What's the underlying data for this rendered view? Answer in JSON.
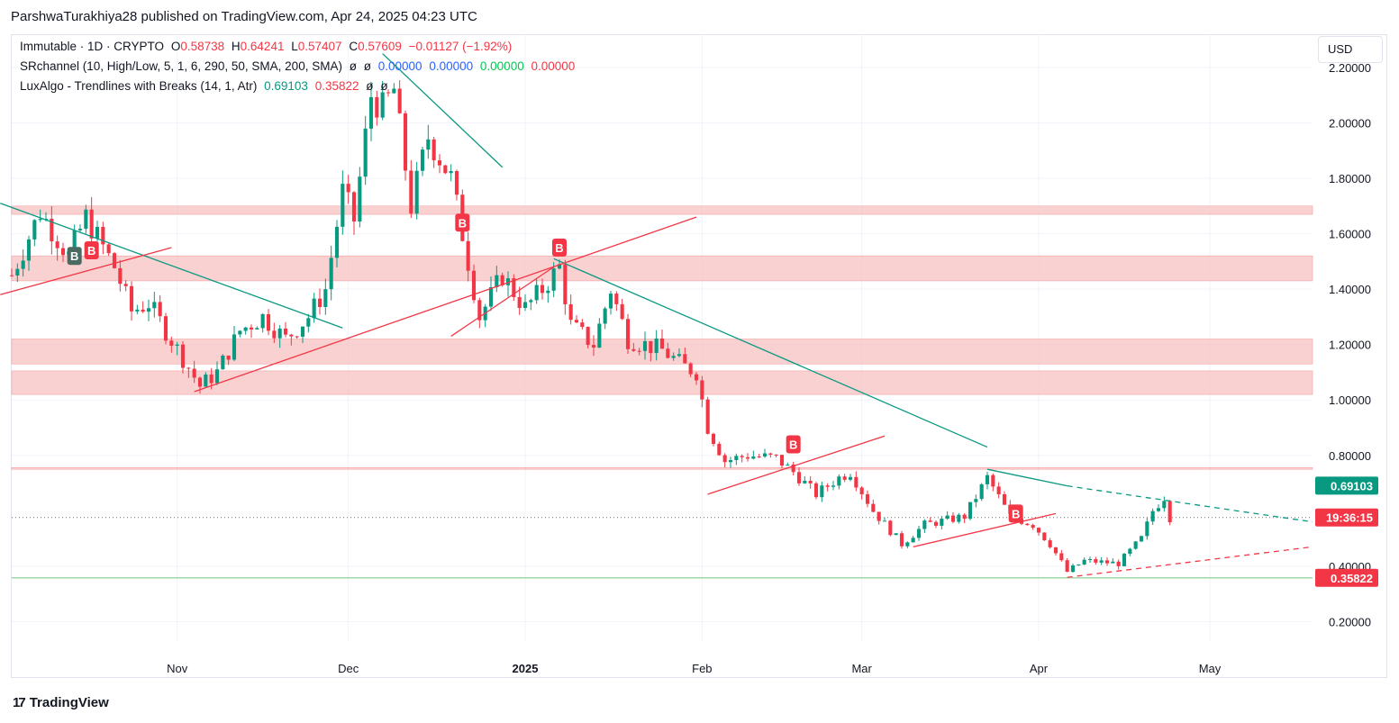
{
  "header": {
    "text": "ParshwaTurakhiya28 published on TradingView.com, Apr 24, 2025 04:23 UTC"
  },
  "legend": {
    "symbol_line": {
      "name": "Immutable · 1D · CRYPTO",
      "o_label": "O",
      "o": "0.58738",
      "h_label": "H",
      "h": "0.64241",
      "l_label": "L",
      "l": "0.57407",
      "c_label": "C",
      "c": "0.57609",
      "change": "−0.01127 (−1.92%)"
    },
    "sr_line": {
      "name": "SRchannel (10, High/Low, 5, 1, 6, 290, 50, SMA, 200, SMA)",
      "sym1": "ø",
      "sym2": "ø",
      "v1": "0.00000",
      "v2": "0.00000",
      "v3": "0.00000",
      "v4": "0.00000"
    },
    "lux_line": {
      "name": "LuxAlgo - Trendlines with Breaks (14, 1, Atr)",
      "v1": "0.69103",
      "v2": "0.35822",
      "sym1": "ø",
      "sym2": "ø"
    }
  },
  "currency_button": "USD",
  "footer": {
    "logo": "17",
    "brand": "TradingView"
  },
  "colors": {
    "up": "#089981",
    "down": "#f23645",
    "zone": "#f8c1c1",
    "green_line": "#089981",
    "red_line": "#f23645",
    "support_line": "#a5d6a7"
  },
  "price_tags": [
    {
      "label": "0.69103",
      "value": 0.69103,
      "color": "#089981"
    },
    {
      "label": "19:36:15",
      "value": 0.576,
      "color": "#f23645"
    },
    {
      "label": "0.35822",
      "value": 0.35822,
      "color": "#f23645"
    }
  ],
  "chart_data": {
    "type": "candlestick",
    "ylim": [
      0.13,
      2.32
    ],
    "y_ticks": [
      "2.20000",
      "2.00000",
      "1.80000",
      "1.60000",
      "1.40000",
      "1.20000",
      "1.00000",
      "0.80000",
      "0.40000",
      "0.20000"
    ],
    "x_labels": [
      {
        "label": "Nov",
        "date": "2024-11-01",
        "bold": false
      },
      {
        "label": "Dec",
        "date": "2024-12-01",
        "bold": false
      },
      {
        "label": "2025",
        "date": "2025-01-01",
        "bold": true
      },
      {
        "label": "Feb",
        "date": "2025-02-01",
        "bold": false
      },
      {
        "label": "Mar",
        "date": "2025-03-01",
        "bold": false
      },
      {
        "label": "Apr",
        "date": "2025-04-01",
        "bold": false
      },
      {
        "label": "May",
        "date": "2025-05-01",
        "bold": false
      }
    ],
    "x_range": [
      "2024-10-03",
      "2025-05-19"
    ],
    "resistance_zones": [
      [
        1.67,
        1.7
      ],
      [
        1.43,
        1.52
      ],
      [
        1.13,
        1.22
      ],
      [
        1.02,
        1.105
      ],
      [
        0.75,
        0.756
      ]
    ],
    "support_line": 0.35822,
    "current_price": 0.57609,
    "candle_keypoints": [
      {
        "date": "2024-10-03",
        "close": 1.45
      },
      {
        "date": "2024-10-08",
        "close": 1.68
      },
      {
        "date": "2024-10-13",
        "close": 1.52
      },
      {
        "date": "2024-10-16",
        "close": 1.66
      },
      {
        "date": "2024-10-21",
        "close": 1.48
      },
      {
        "date": "2024-10-24",
        "close": 1.32
      },
      {
        "date": "2024-10-27",
        "close": 1.35
      },
      {
        "date": "2024-10-30",
        "close": 1.25
      },
      {
        "date": "2024-11-02",
        "close": 1.15
      },
      {
        "date": "2024-11-05",
        "close": 1.05
      },
      {
        "date": "2024-11-08",
        "close": 1.1
      },
      {
        "date": "2024-11-12",
        "close": 1.25
      },
      {
        "date": "2024-11-16",
        "close": 1.3
      },
      {
        "date": "2024-11-20",
        "close": 1.22
      },
      {
        "date": "2024-11-24",
        "close": 1.3
      },
      {
        "date": "2024-11-27",
        "close": 1.4
      },
      {
        "date": "2024-11-30",
        "close": 1.75
      },
      {
        "date": "2024-12-02",
        "close": 1.65
      },
      {
        "date": "2024-12-05",
        "close": 2.1
      },
      {
        "date": "2024-12-07",
        "close": 2.05
      },
      {
        "date": "2024-12-09",
        "close": 2.12
      },
      {
        "date": "2024-12-12",
        "close": 1.7
      },
      {
        "date": "2024-12-15",
        "close": 1.95
      },
      {
        "date": "2024-12-19",
        "close": 1.8
      },
      {
        "date": "2024-12-21",
        "close": 1.6
      },
      {
        "date": "2024-12-24",
        "close": 1.3
      },
      {
        "date": "2024-12-28",
        "close": 1.45
      },
      {
        "date": "2025-01-01",
        "close": 1.33
      },
      {
        "date": "2025-01-04",
        "close": 1.4
      },
      {
        "date": "2025-01-07",
        "close": 1.48
      },
      {
        "date": "2025-01-09",
        "close": 1.27
      },
      {
        "date": "2025-01-13",
        "close": 1.2
      },
      {
        "date": "2025-01-16",
        "close": 1.4
      },
      {
        "date": "2025-01-19",
        "close": 1.22
      },
      {
        "date": "2025-01-25",
        "close": 1.18
      },
      {
        "date": "2025-01-29",
        "close": 1.12
      },
      {
        "date": "2025-01-31",
        "close": 1.1
      },
      {
        "date": "2025-02-02",
        "close": 0.9
      },
      {
        "date": "2025-02-05",
        "close": 0.78
      },
      {
        "date": "2025-02-09",
        "close": 0.8
      },
      {
        "date": "2025-02-14",
        "close": 0.79
      },
      {
        "date": "2025-02-17",
        "close": 0.74
      },
      {
        "date": "2025-02-21",
        "close": 0.66
      },
      {
        "date": "2025-02-25",
        "close": 0.72
      },
      {
        "date": "2025-02-27",
        "close": 0.74
      },
      {
        "date": "2025-03-03",
        "close": 0.6
      },
      {
        "date": "2025-03-08",
        "close": 0.48
      },
      {
        "date": "2025-03-12",
        "close": 0.55
      },
      {
        "date": "2025-03-19",
        "close": 0.58
      },
      {
        "date": "2025-03-23",
        "close": 0.72
      },
      {
        "date": "2025-03-27",
        "close": 0.58
      },
      {
        "date": "2025-03-31",
        "close": 0.55
      },
      {
        "date": "2025-04-03",
        "close": 0.48
      },
      {
        "date": "2025-04-06",
        "close": 0.38
      },
      {
        "date": "2025-04-09",
        "close": 0.42
      },
      {
        "date": "2025-04-15",
        "close": 0.41
      },
      {
        "date": "2025-04-19",
        "close": 0.5
      },
      {
        "date": "2025-04-21",
        "close": 0.6
      },
      {
        "date": "2025-04-23",
        "close": 0.65
      },
      {
        "date": "2025-04-24",
        "close": 0.57609
      }
    ],
    "trendlines": [
      {
        "color": "#089981",
        "dashed": false,
        "from": {
          "date": "2024-10-01",
          "value": 1.71
        },
        "to": {
          "date": "2024-11-30",
          "value": 1.26
        }
      },
      {
        "color": "#089981",
        "dashed": false,
        "from": {
          "date": "2024-12-07",
          "value": 2.25
        },
        "to": {
          "date": "2024-12-28",
          "value": 1.84
        }
      },
      {
        "color": "#089981",
        "dashed": false,
        "from": {
          "date": "2025-01-06",
          "value": 1.51
        },
        "to": {
          "date": "2025-03-23",
          "value": 0.83
        }
      },
      {
        "color": "#089981",
        "dashed": false,
        "from": {
          "date": "2025-03-23",
          "value": 0.75
        },
        "to": {
          "date": "2025-04-06",
          "value": 0.69
        }
      },
      {
        "color": "#089981",
        "dashed": true,
        "from": {
          "date": "2025-04-06",
          "value": 0.69
        },
        "to": {
          "date": "2025-05-19",
          "value": 0.56
        }
      },
      {
        "color": "#f23645",
        "dashed": false,
        "from": {
          "date": "2024-10-01",
          "value": 1.38
        },
        "to": {
          "date": "2024-10-31",
          "value": 1.55
        }
      },
      {
        "color": "#f23645",
        "dashed": false,
        "from": {
          "date": "2024-11-04",
          "value": 1.03
        },
        "to": {
          "date": "2025-01-31",
          "value": 1.66
        }
      },
      {
        "color": "#f23645",
        "dashed": false,
        "from": {
          "date": "2024-12-19",
          "value": 1.23
        },
        "to": {
          "date": "2025-01-06",
          "value": 1.48
        }
      },
      {
        "color": "#f23645",
        "dashed": false,
        "from": {
          "date": "2025-02-02",
          "value": 0.66
        },
        "to": {
          "date": "2025-03-05",
          "value": 0.87
        }
      },
      {
        "color": "#f23645",
        "dashed": false,
        "from": {
          "date": "2025-03-10",
          "value": 0.47
        },
        "to": {
          "date": "2025-04-04",
          "value": 0.59
        }
      },
      {
        "color": "#f23645",
        "dashed": true,
        "from": {
          "date": "2025-04-06",
          "value": 0.36
        },
        "to": {
          "date": "2025-05-19",
          "value": 0.47
        }
      }
    ],
    "break_labels": [
      {
        "text": "B",
        "date": "2024-10-14",
        "value": 1.52,
        "color": "#4a6b62"
      },
      {
        "text": "B",
        "date": "2024-10-17",
        "value": 1.54,
        "color": "#f23645"
      },
      {
        "text": "B",
        "date": "2024-12-21",
        "value": 1.64,
        "color": "#f23645"
      },
      {
        "text": "B",
        "date": "2025-01-07",
        "value": 1.55,
        "color": "#f23645"
      },
      {
        "text": "B",
        "date": "2025-02-17",
        "value": 0.84,
        "color": "#f23645"
      },
      {
        "text": "B",
        "date": "2025-03-28",
        "value": 0.59,
        "color": "#f23645"
      }
    ]
  }
}
